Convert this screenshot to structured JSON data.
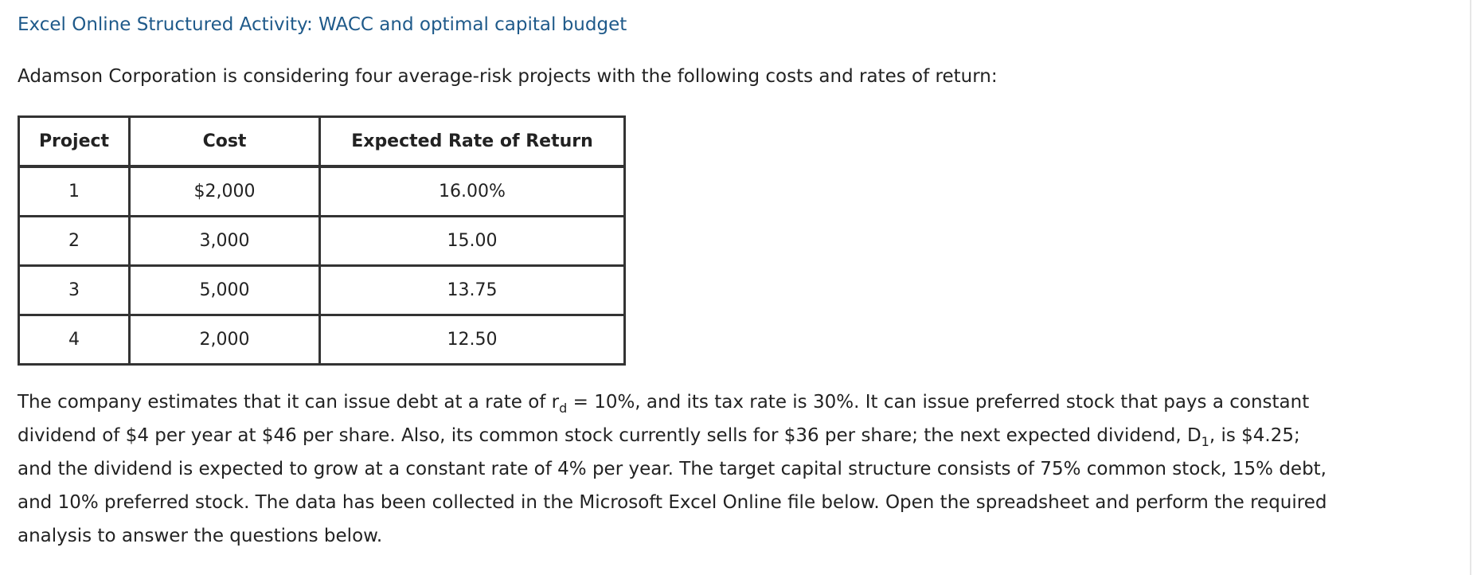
{
  "title": "Excel Online Structured Activity: WACC and optimal capital budget",
  "intro": "Adamson Corporation is considering four average-risk projects with the following costs and rates of return:",
  "table": {
    "headers": [
      "Project",
      "Cost",
      "Expected Rate of Return"
    ],
    "rows": [
      [
        "1",
        "$2,000",
        "16.00%"
      ],
      [
        "2",
        "3,000",
        "15.00"
      ],
      [
        "3",
        "5,000",
        "13.75"
      ],
      [
        "4",
        "2,000",
        "12.50"
      ]
    ]
  },
  "paragraph": {
    "l1_a": "The company estimates that it can issue debt at a rate of r",
    "l1_sub": "d",
    "l1_b": " = 10%, and its tax rate is 30%. It can issue preferred stock that pays a constant",
    "l2_a": "dividend of $4 per year at $46 per share. Also, its common stock currently sells for $36 per share; the next expected dividend, D",
    "l2_sub": "1",
    "l2_b": ", is $4.25;",
    "l3": "and the dividend is expected to grow at a constant rate of 4% per year. The target capital structure consists of 75% common stock, 15% debt,",
    "l4": "and 10% preferred stock. The data has been collected in the Microsoft Excel Online file below. Open the spreadsheet and perform the required",
    "l5": "analysis to answer the questions below."
  }
}
